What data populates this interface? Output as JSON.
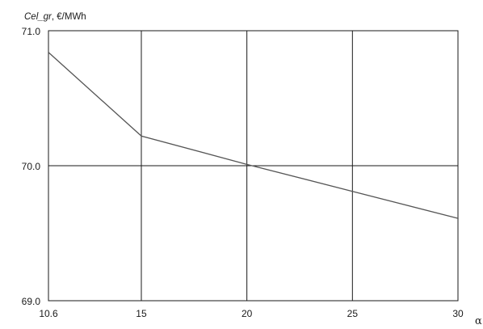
{
  "chart_data": {
    "type": "line",
    "title": "",
    "ylabel_var": "Cel_gr",
    "ylabel_unit": ", €/MWh",
    "xlabel": "α",
    "xlim": [
      10.6,
      30
    ],
    "ylim": [
      69.0,
      71.0
    ],
    "x_ticks": [
      10.6,
      15,
      20,
      25,
      30
    ],
    "x_tick_labels": [
      "10.6",
      "15",
      "20",
      "25",
      "30"
    ],
    "y_ticks": [
      69.0,
      70.0,
      71.0
    ],
    "y_tick_labels": [
      "69.0",
      "70.0",
      "71.0"
    ],
    "grid": true,
    "legend": "none",
    "colors": {
      "line": "#555555",
      "grid": "#1a1a1a",
      "axis": "#1a1a1a"
    },
    "series": [
      {
        "x": [
          10.6,
          15,
          20,
          25,
          30
        ],
        "y": [
          70.84,
          70.22,
          70.01,
          69.81,
          69.61
        ]
      }
    ]
  }
}
